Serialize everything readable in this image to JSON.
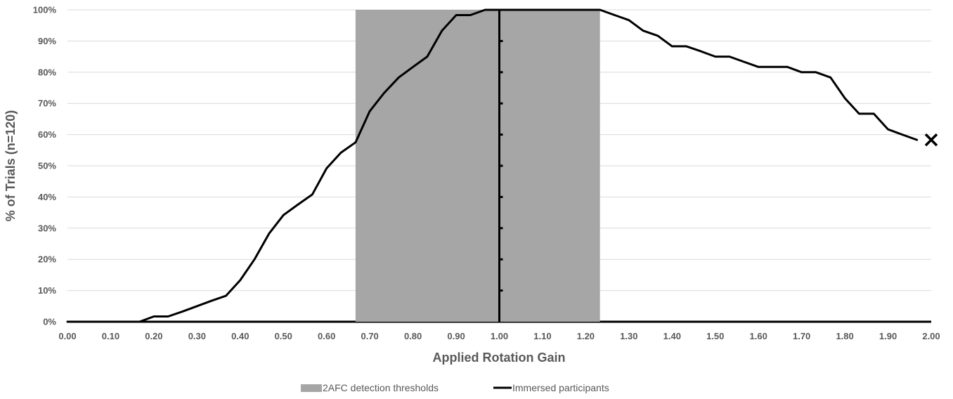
{
  "chart_data": {
    "type": "line",
    "xlabel": "Applied Rotation Gain",
    "ylabel": "% of Trials (n=120)",
    "xlim": [
      0,
      2
    ],
    "ylim": [
      0,
      100
    ],
    "x_ticks": [
      "0.00",
      "0.10",
      "0.20",
      "0.30",
      "0.40",
      "0.50",
      "0.60",
      "0.70",
      "0.80",
      "0.90",
      "1.00",
      "1.10",
      "1.20",
      "1.30",
      "1.40",
      "1.50",
      "1.60",
      "1.70",
      "1.80",
      "1.90",
      "2.00"
    ],
    "y_ticks": [
      "0%",
      "10%",
      "20%",
      "30%",
      "40%",
      "50%",
      "60%",
      "70%",
      "80%",
      "90%",
      "100%"
    ],
    "grid": "horizontal",
    "legend_position": "bottom",
    "shaded_region": {
      "name": "2AFC detection thresholds",
      "x_start": 0.667,
      "x_end": 1.233,
      "color": "#a6a6a6"
    },
    "reference_line": {
      "x": 1.0
    },
    "series": [
      {
        "name": "Immersed participants",
        "color": "#000000",
        "x": [
          0.0,
          0.033,
          0.067,
          0.1,
          0.133,
          0.167,
          0.2,
          0.233,
          0.267,
          0.3,
          0.333,
          0.367,
          0.4,
          0.433,
          0.467,
          0.5,
          0.533,
          0.567,
          0.6,
          0.633,
          0.667,
          0.7,
          0.733,
          0.767,
          0.8,
          0.833,
          0.867,
          0.9,
          0.933,
          0.967,
          1.0,
          1.033,
          1.067,
          1.1,
          1.133,
          1.167,
          1.2,
          1.233,
          1.267,
          1.3,
          1.333,
          1.367,
          1.4,
          1.433,
          1.467,
          1.5,
          1.533,
          1.567,
          1.6,
          1.633,
          1.667,
          1.7,
          1.733,
          1.767,
          1.8,
          1.833,
          1.867,
          1.9,
          1.933,
          1.967
        ],
        "y": [
          0,
          0,
          0,
          0,
          0,
          0,
          1.7,
          1.7,
          3.3,
          5,
          6.7,
          8.3,
          13.3,
          20,
          28.3,
          34.2,
          37.5,
          40.8,
          49.2,
          54.2,
          57.5,
          67.5,
          73.3,
          78.3,
          81.7,
          85,
          93.3,
          98.3,
          98.3,
          100,
          100,
          100,
          100,
          100,
          100,
          100,
          100,
          100,
          98.3,
          96.7,
          93.3,
          91.7,
          88.3,
          88.3,
          86.7,
          85,
          85,
          83.3,
          81.7,
          81.7,
          81.7,
          80,
          80,
          78.3,
          71.7,
          66.7,
          66.7,
          61.7,
          60,
          58.3
        ]
      }
    ],
    "end_marker": {
      "x": 2.0,
      "y": 58.3,
      "symbol": "×"
    }
  }
}
